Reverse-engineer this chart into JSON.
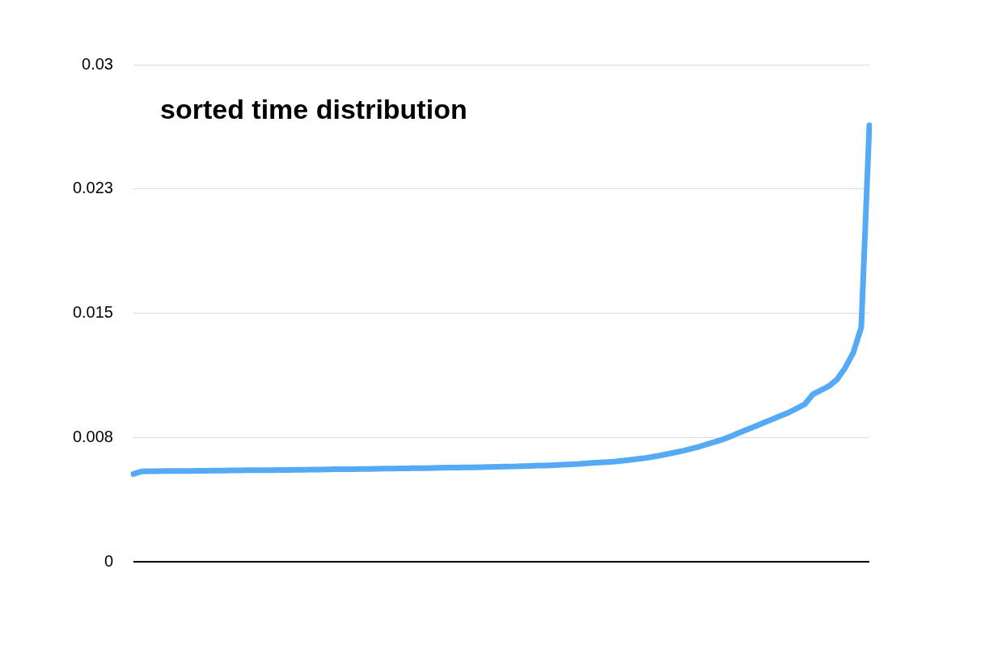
{
  "chart_data": {
    "type": "line",
    "title": "sorted time distribution",
    "categories": [
      null,
      null,
      null,
      null,
      null,
      null,
      null,
      null,
      null,
      null,
      null,
      null,
      null,
      null,
      null,
      null,
      null,
      null,
      null,
      null,
      null,
      null,
      null,
      null,
      null,
      null,
      null,
      null,
      null,
      null,
      null,
      null,
      null,
      null,
      null,
      null,
      null,
      null,
      null,
      null,
      null,
      null,
      null,
      null,
      null,
      null,
      null,
      null,
      null,
      null,
      null,
      null,
      null,
      null,
      null,
      null,
      null,
      null,
      null,
      null,
      null,
      null,
      null,
      null,
      null,
      null,
      null,
      null,
      null,
      null,
      null,
      null,
      null,
      null,
      null,
      null,
      null,
      null,
      null,
      null,
      null,
      null,
      null,
      null,
      null,
      null,
      null,
      null,
      null,
      null,
      null,
      null
    ],
    "series": [
      {
        "color": "#55aaf5",
        "values": [
          0.0053,
          0.00545,
          0.00546,
          0.00546,
          0.00547,
          0.00547,
          0.00548,
          0.00548,
          0.00549,
          0.00549,
          0.0055,
          0.0055,
          0.00551,
          0.00551,
          0.00552,
          0.00552,
          0.00553,
          0.00553,
          0.00554,
          0.00554,
          0.00555,
          0.00555,
          0.00556,
          0.00556,
          0.00557,
          0.00558,
          0.00558,
          0.00559,
          0.0056,
          0.0056,
          0.00561,
          0.00562,
          0.00562,
          0.00563,
          0.00564,
          0.00565,
          0.00565,
          0.00566,
          0.00567,
          0.00568,
          0.00568,
          0.00569,
          0.0057,
          0.00571,
          0.00572,
          0.00573,
          0.00574,
          0.00575,
          0.00577,
          0.00578,
          0.0058,
          0.00581,
          0.00583,
          0.00585,
          0.00588,
          0.0059,
          0.00594,
          0.00598,
          0.006,
          0.00603,
          0.00607,
          0.00612,
          0.00618,
          0.00624,
          0.00632,
          0.0064,
          0.0065,
          0.0066,
          0.0067,
          0.00682,
          0.00695,
          0.0071,
          0.00725,
          0.0074,
          0.0076,
          0.0078,
          0.008,
          0.0082,
          0.0084,
          0.0086,
          0.0088,
          0.009,
          0.00925,
          0.0095,
          0.0101,
          0.01035,
          0.0106,
          0.011,
          0.0117,
          0.0126,
          0.01415,
          0.02634
        ]
      }
    ],
    "ylim": [
      0,
      0.03
    ],
    "yticks": [
      0,
      {
        "value": 0.0075,
        "label": "0.008"
      },
      0.015,
      {
        "value": 0.0225,
        "label": "0.023"
      },
      0.03
    ],
    "grid": "y",
    "tick_labels": "y",
    "marker": "none",
    "line_style": "solid",
    "legend": false
  }
}
